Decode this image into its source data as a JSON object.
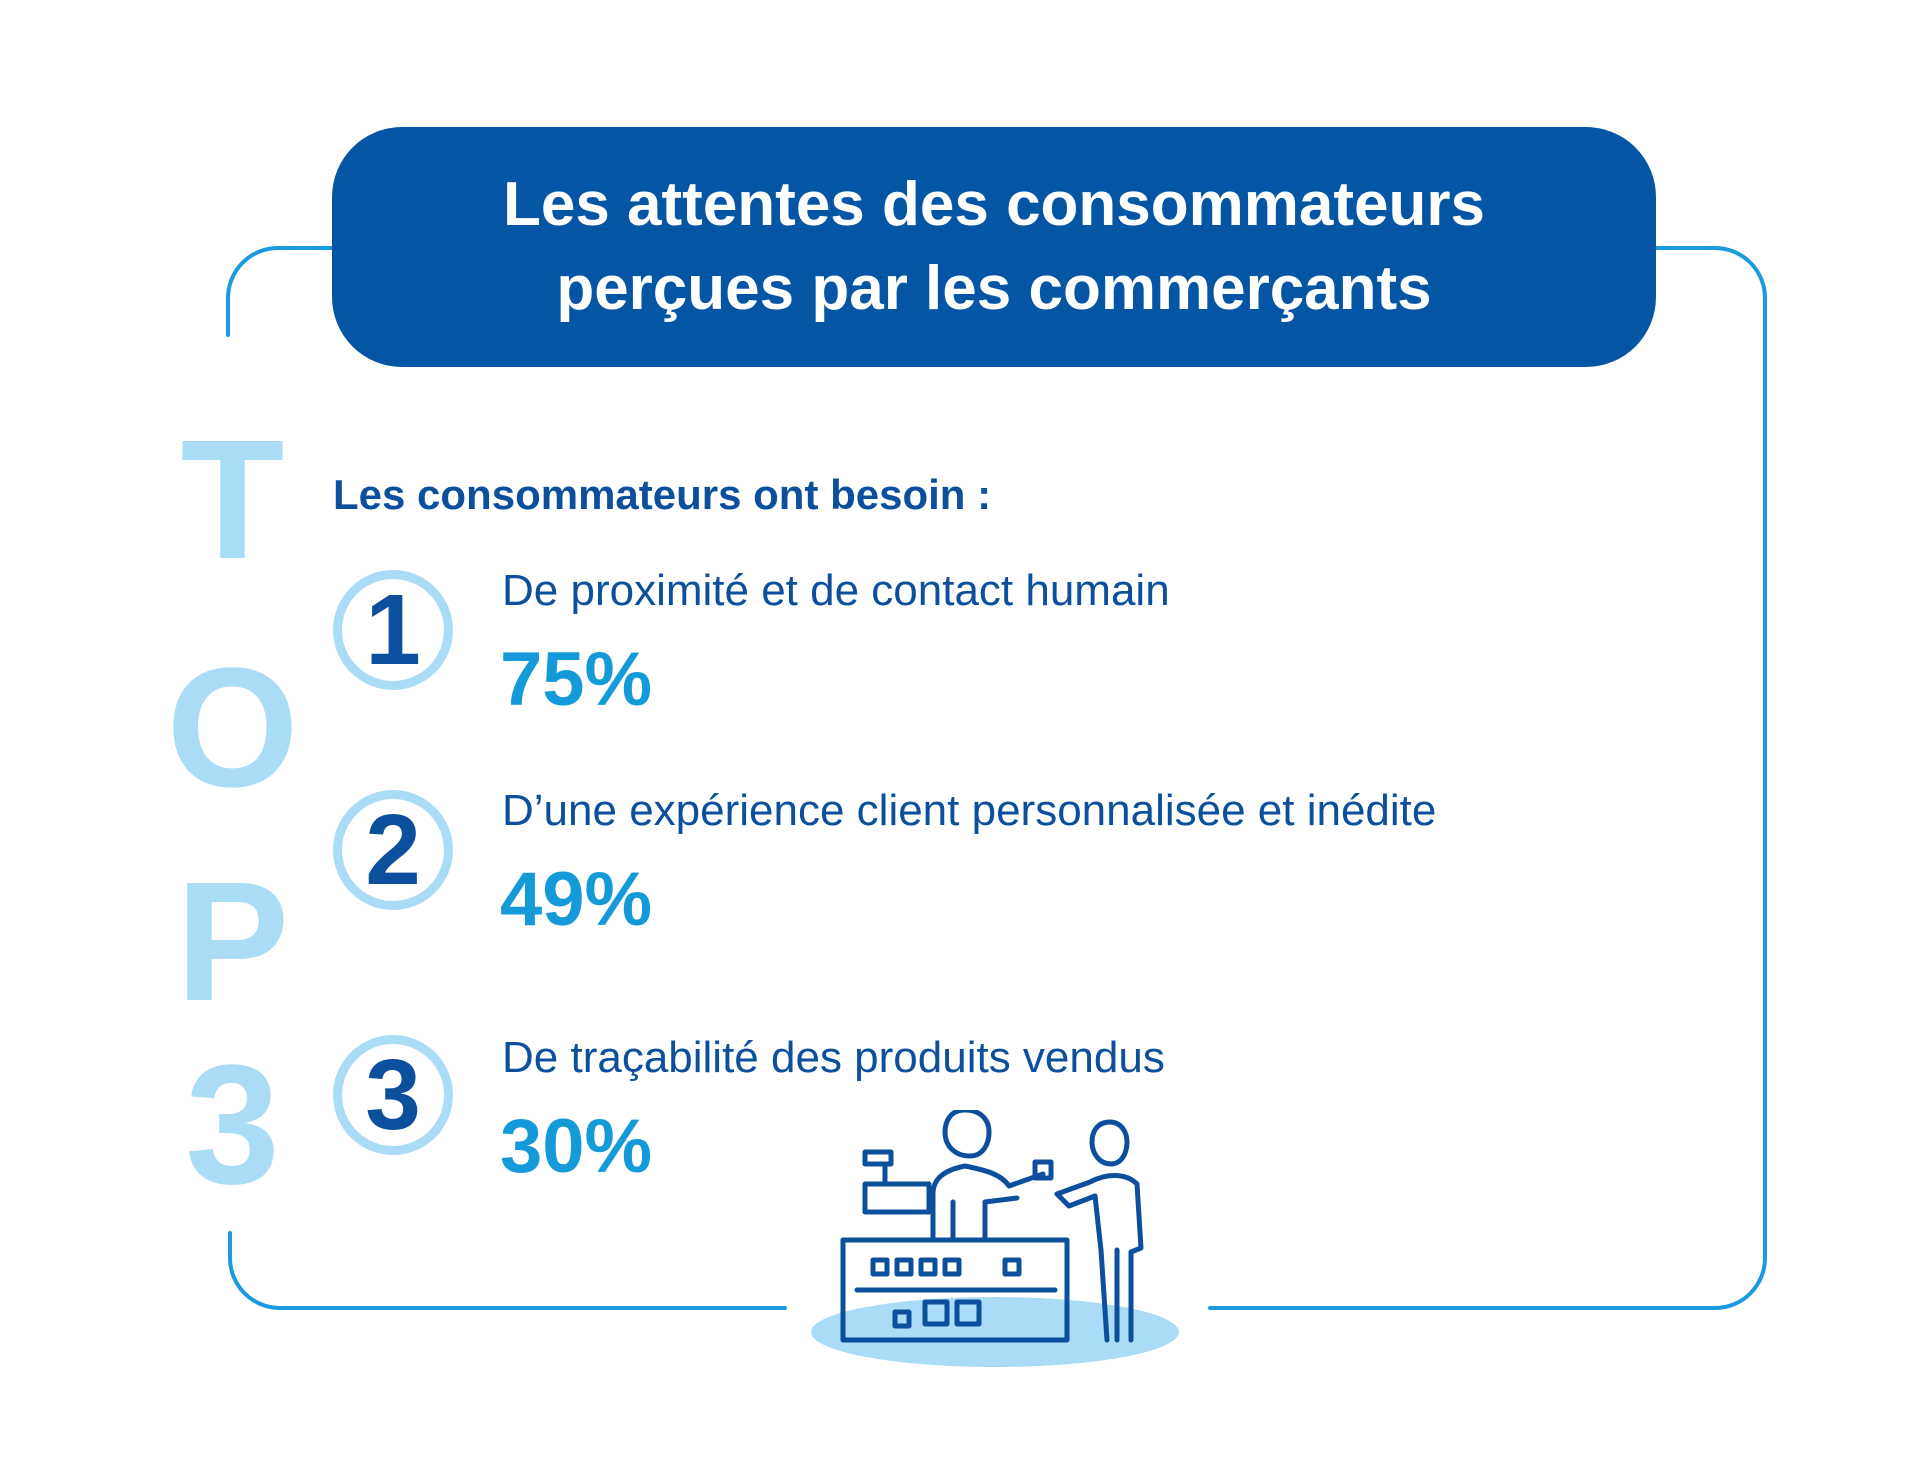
{
  "header": {
    "title_line1": "Les attentes des consommateurs",
    "title_line2": "perçues par les commerçants"
  },
  "top_label": {
    "letters": [
      "T",
      "O",
      "P",
      "3"
    ]
  },
  "subtitle": "Les consommateurs ont besoin :",
  "items": [
    {
      "rank": "1",
      "label": "De proximité et de contact humain",
      "percent": "75%"
    },
    {
      "rank": "2",
      "label": "D’une expérience client personnalisée et inédite",
      "percent": "49%"
    },
    {
      "rank": "3",
      "label": "De traçabilité des produits vendus",
      "percent": "30%"
    }
  ],
  "icons": {
    "illustration": "shop-counter-icon"
  },
  "colors": {
    "dark_blue": "#0456a4",
    "text_blue": "#0b4f9d",
    "bright_blue": "#159ad9",
    "light_blue": "#abdcf7",
    "frame_blue": "#1a9be0"
  }
}
